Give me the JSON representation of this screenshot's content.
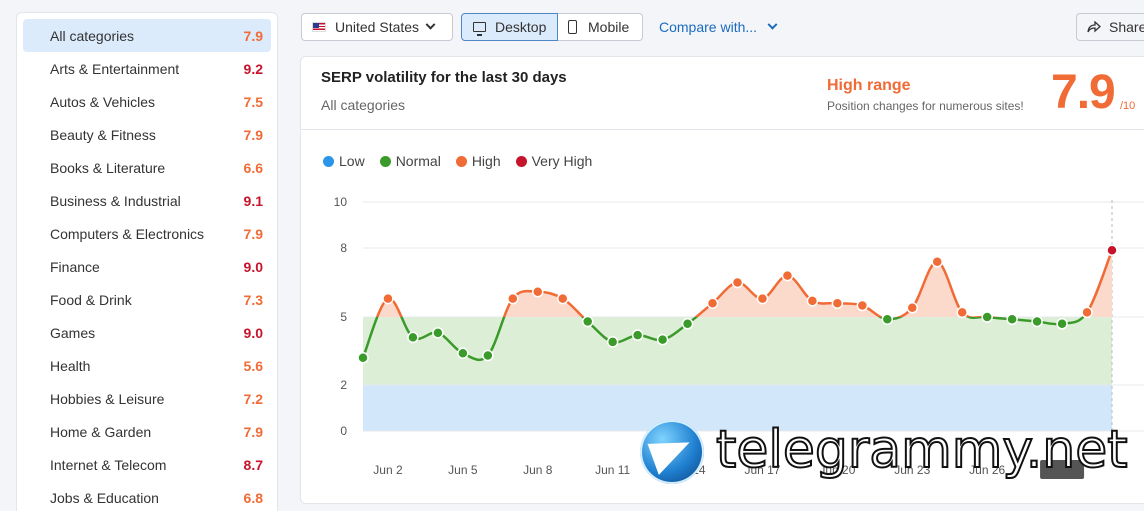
{
  "sidebar": {
    "categories": [
      {
        "label": "All categories",
        "score": "7.9",
        "color": "#f06b35"
      },
      {
        "label": "Arts & Entertainment",
        "score": "9.2",
        "color": "#c6142b"
      },
      {
        "label": "Autos & Vehicles",
        "score": "7.5",
        "color": "#f06b35"
      },
      {
        "label": "Beauty & Fitness",
        "score": "7.9",
        "color": "#f06b35"
      },
      {
        "label": "Books & Literature",
        "score": "6.6",
        "color": "#f06b35"
      },
      {
        "label": "Business & Industrial",
        "score": "9.1",
        "color": "#c6142b"
      },
      {
        "label": "Computers & Electronics",
        "score": "7.9",
        "color": "#f06b35"
      },
      {
        "label": "Finance",
        "score": "9.0",
        "color": "#c6142b"
      },
      {
        "label": "Food & Drink",
        "score": "7.3",
        "color": "#f06b35"
      },
      {
        "label": "Games",
        "score": "9.0",
        "color": "#c6142b"
      },
      {
        "label": "Health",
        "score": "5.6",
        "color": "#f06b35"
      },
      {
        "label": "Hobbies & Leisure",
        "score": "7.2",
        "color": "#f06b35"
      },
      {
        "label": "Home & Garden",
        "score": "7.9",
        "color": "#f06b35"
      },
      {
        "label": "Internet & Telecom",
        "score": "8.7",
        "color": "#c6142b"
      },
      {
        "label": "Jobs & Education",
        "score": "6.8",
        "color": "#f06b35"
      }
    ]
  },
  "toolbar": {
    "country": "United States",
    "desktop": "Desktop",
    "mobile": "Mobile",
    "compare": "Compare with...",
    "share": "Share"
  },
  "card": {
    "title": "SERP volatility for the last 30 days",
    "subtitle": "All categories",
    "range_title": "High range",
    "range_sub": "Position changes for numerous sites!",
    "score": "7.9",
    "score_out": "/10"
  },
  "watermark": "telegrammy.net",
  "chart_data": {
    "type": "line",
    "legend": [
      {
        "name": "Low",
        "color": "#2b95e8"
      },
      {
        "name": "Normal",
        "color": "#3a9a2a"
      },
      {
        "name": "High",
        "color": "#f06b35"
      },
      {
        "name": "Very High",
        "color": "#c6142b"
      }
    ],
    "yticks": [
      0,
      2,
      5,
      8,
      10
    ],
    "ylim": [
      0,
      10
    ],
    "bands": [
      {
        "from": 0,
        "to": 2,
        "color": "#d2e8fa"
      },
      {
        "from": 2,
        "to": 5,
        "color": "#dcefd6"
      }
    ],
    "xlabels": [
      "Jun 2",
      "Jun 5",
      "Jun 8",
      "Jun 11",
      "Jun 14",
      "Jun 17",
      "Jun 20",
      "Jun 23",
      "Jun 26",
      "Jun 29"
    ],
    "xlabel_start_index": 1,
    "values": [
      3.2,
      5.8,
      4.1,
      4.3,
      3.4,
      3.3,
      5.8,
      6.1,
      5.8,
      4.8,
      3.9,
      4.2,
      4.0,
      4.7,
      5.6,
      6.5,
      5.8,
      6.8,
      5.7,
      5.6,
      5.5,
      4.9,
      5.4,
      7.4,
      5.2,
      5.0,
      4.9,
      4.8,
      4.7,
      5.2,
      7.9
    ],
    "highlight_last": "Jun 29"
  }
}
